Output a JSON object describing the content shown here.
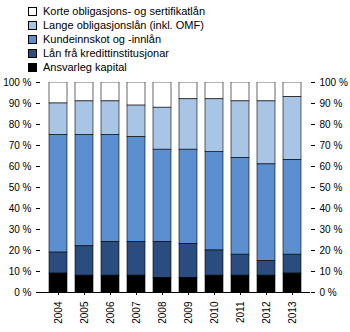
{
  "chart_data": {
    "type": "bar",
    "stacked": true,
    "categories": [
      "2004",
      "2005",
      "2006",
      "2007",
      "2008",
      "2009",
      "2010",
      "2011",
      "2012",
      "2013"
    ],
    "series": [
      {
        "name": "Korte obligasjons- og sertifikatlån",
        "color": "#ffffff",
        "values": [
          10,
          9,
          9,
          11,
          12,
          8,
          8,
          9,
          9,
          7
        ]
      },
      {
        "name": "Lange obligasjonslån (inkl. OMF)",
        "color": "#a9c5e6",
        "values": [
          15,
          16,
          16,
          15,
          20,
          24,
          25,
          27,
          30,
          30
        ]
      },
      {
        "name": "Kundeinnskot og -innlån",
        "color": "#5b8fd0",
        "values": [
          56,
          53,
          51,
          50,
          44,
          45,
          47,
          46,
          46,
          45
        ]
      },
      {
        "name": "Lån frå kredittinstitusjonar",
        "color": "#2b4c7e",
        "values": [
          10,
          14,
          16,
          16,
          17,
          16,
          12,
          10,
          7,
          9
        ]
      },
      {
        "name": "Ansvarleg kapital",
        "color": "#000000",
        "values": [
          9,
          8,
          8,
          8,
          7,
          7,
          8,
          8,
          8,
          9
        ]
      }
    ],
    "ylim": [
      0,
      100
    ],
    "yticks": [
      {
        "value": 0,
        "label": "0 %"
      },
      {
        "value": 10,
        "label": "10 %"
      },
      {
        "value": 20,
        "label": "20 %"
      },
      {
        "value": 30,
        "label": "30 %"
      },
      {
        "value": 40,
        "label": "40 %"
      },
      {
        "value": 50,
        "label": "50 %"
      },
      {
        "value": 60,
        "label": "60 %"
      },
      {
        "value": 70,
        "label": "70 %"
      },
      {
        "value": 80,
        "label": "80 %"
      },
      {
        "value": 90,
        "label": "90 %"
      },
      {
        "value": 100,
        "label": "100 %"
      }
    ],
    "legend": "top",
    "grid": false
  }
}
